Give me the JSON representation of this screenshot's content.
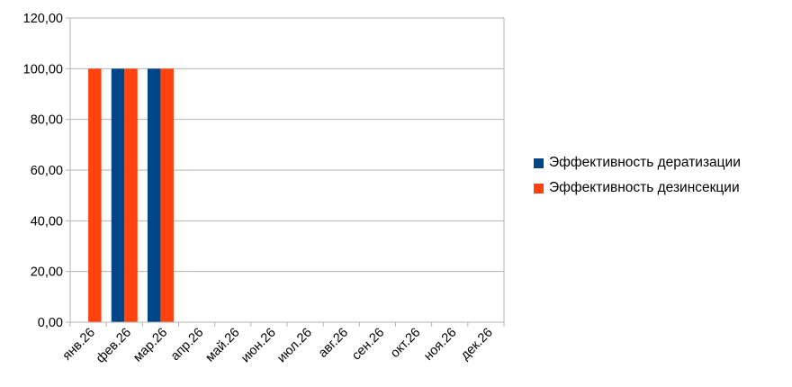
{
  "chart_data": {
    "type": "bar",
    "categories": [
      "янв.26",
      "фев.26",
      "мар.26",
      "апр.26",
      "май.26",
      "июн.26",
      "июл.26",
      "авг.26",
      "сен.26",
      "окт.26",
      "ноя.26",
      "дек.26"
    ],
    "series": [
      {
        "name": "Эффективность дератизации",
        "color": "#004586",
        "values": [
          null,
          100,
          100,
          null,
          null,
          null,
          null,
          null,
          null,
          null,
          null,
          null
        ]
      },
      {
        "name": "Эффективность дезинсекции",
        "color": "#ff420e",
        "values": [
          100,
          100,
          100,
          null,
          null,
          null,
          null,
          null,
          null,
          null,
          null,
          null
        ]
      }
    ],
    "ylim": [
      0,
      120
    ],
    "yticks": [
      "0,00",
      "20,00",
      "40,00",
      "60,00",
      "80,00",
      "100,00",
      "120,00"
    ],
    "grid": true,
    "legend_position": "right"
  }
}
